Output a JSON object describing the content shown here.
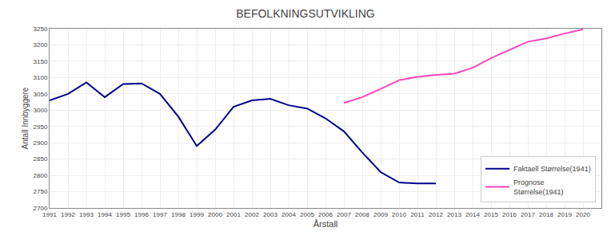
{
  "chart_data": {
    "type": "line",
    "title": "BEFOLKNINGSUTVIKLING",
    "xlabel": "Årstall",
    "ylabel": "Antall Innbyggere",
    "series": [
      {
        "name": "Faktaell Størrelse(1941)",
        "color": "#00008B",
        "x": [
          1991,
          1992,
          1993,
          1994,
          1995,
          1996,
          1997,
          1998,
          1999,
          2000,
          2001,
          2002,
          2003,
          2004,
          2005,
          2006,
          2007,
          2008,
          2009,
          2010,
          2011,
          2012
        ],
        "values": [
          3030,
          3050,
          3085,
          3040,
          3080,
          3082,
          3050,
          2980,
          2890,
          2940,
          3010,
          3030,
          3035,
          3015,
          3005,
          2975,
          2935,
          2870,
          2810,
          2778,
          2775,
          2775
        ]
      },
      {
        "name": "Prognose\nStørrelse(1941)",
        "color": "#FF44BB",
        "x": [
          2007,
          2008,
          2009,
          2010,
          2011,
          2012,
          2013,
          2014,
          2015,
          2016,
          2017,
          2018,
          2019,
          2020
        ],
        "values": [
          3022,
          3040,
          3065,
          3092,
          3102,
          3108,
          3112,
          3130,
          3160,
          3185,
          3210,
          3220,
          3235,
          3248
        ]
      }
    ],
    "xlim": [
      1991,
      2021
    ],
    "ylim": [
      2700,
      3250
    ],
    "xticks": [
      1991,
      1992,
      1993,
      1994,
      1995,
      1996,
      1997,
      1998,
      1999,
      2000,
      2001,
      2002,
      2003,
      2004,
      2005,
      2006,
      2007,
      2008,
      2009,
      2010,
      2011,
      2012,
      2013,
      2014,
      2015,
      2016,
      2017,
      2018,
      2019,
      2020
    ],
    "yticks": [
      2700,
      2750,
      2800,
      2850,
      2900,
      2950,
      3000,
      3050,
      3100,
      3150,
      3200,
      3250
    ],
    "grid": true,
    "legend": "lower right"
  }
}
